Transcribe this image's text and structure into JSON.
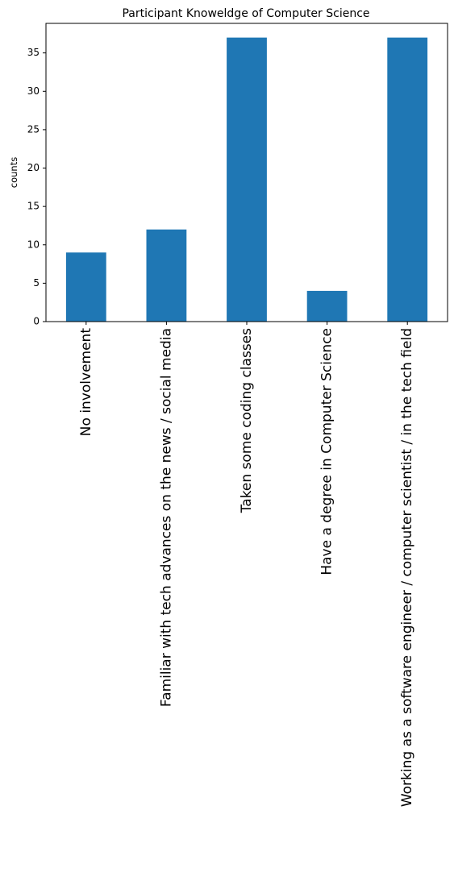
{
  "chart_data": {
    "type": "bar",
    "title": "Participant Knoweldge of Computer Science",
    "xlabel": "",
    "ylabel": "counts",
    "categories": [
      "No involvement",
      "Familiar with tech advances on the news / social media",
      "Taken some coding classes",
      "Have a degree in Computer Science",
      "Working as a software engineer / computer scientist / in the tech field"
    ],
    "values": [
      9,
      12,
      37,
      4,
      37
    ],
    "ylim": [
      0,
      38.85
    ],
    "yticks": [
      0,
      5,
      10,
      15,
      20,
      25,
      30,
      35
    ],
    "grid": false,
    "legend": "none",
    "colors": {
      "bar": "#1f77b4",
      "axis": "#000000",
      "background": "#ffffff"
    }
  }
}
